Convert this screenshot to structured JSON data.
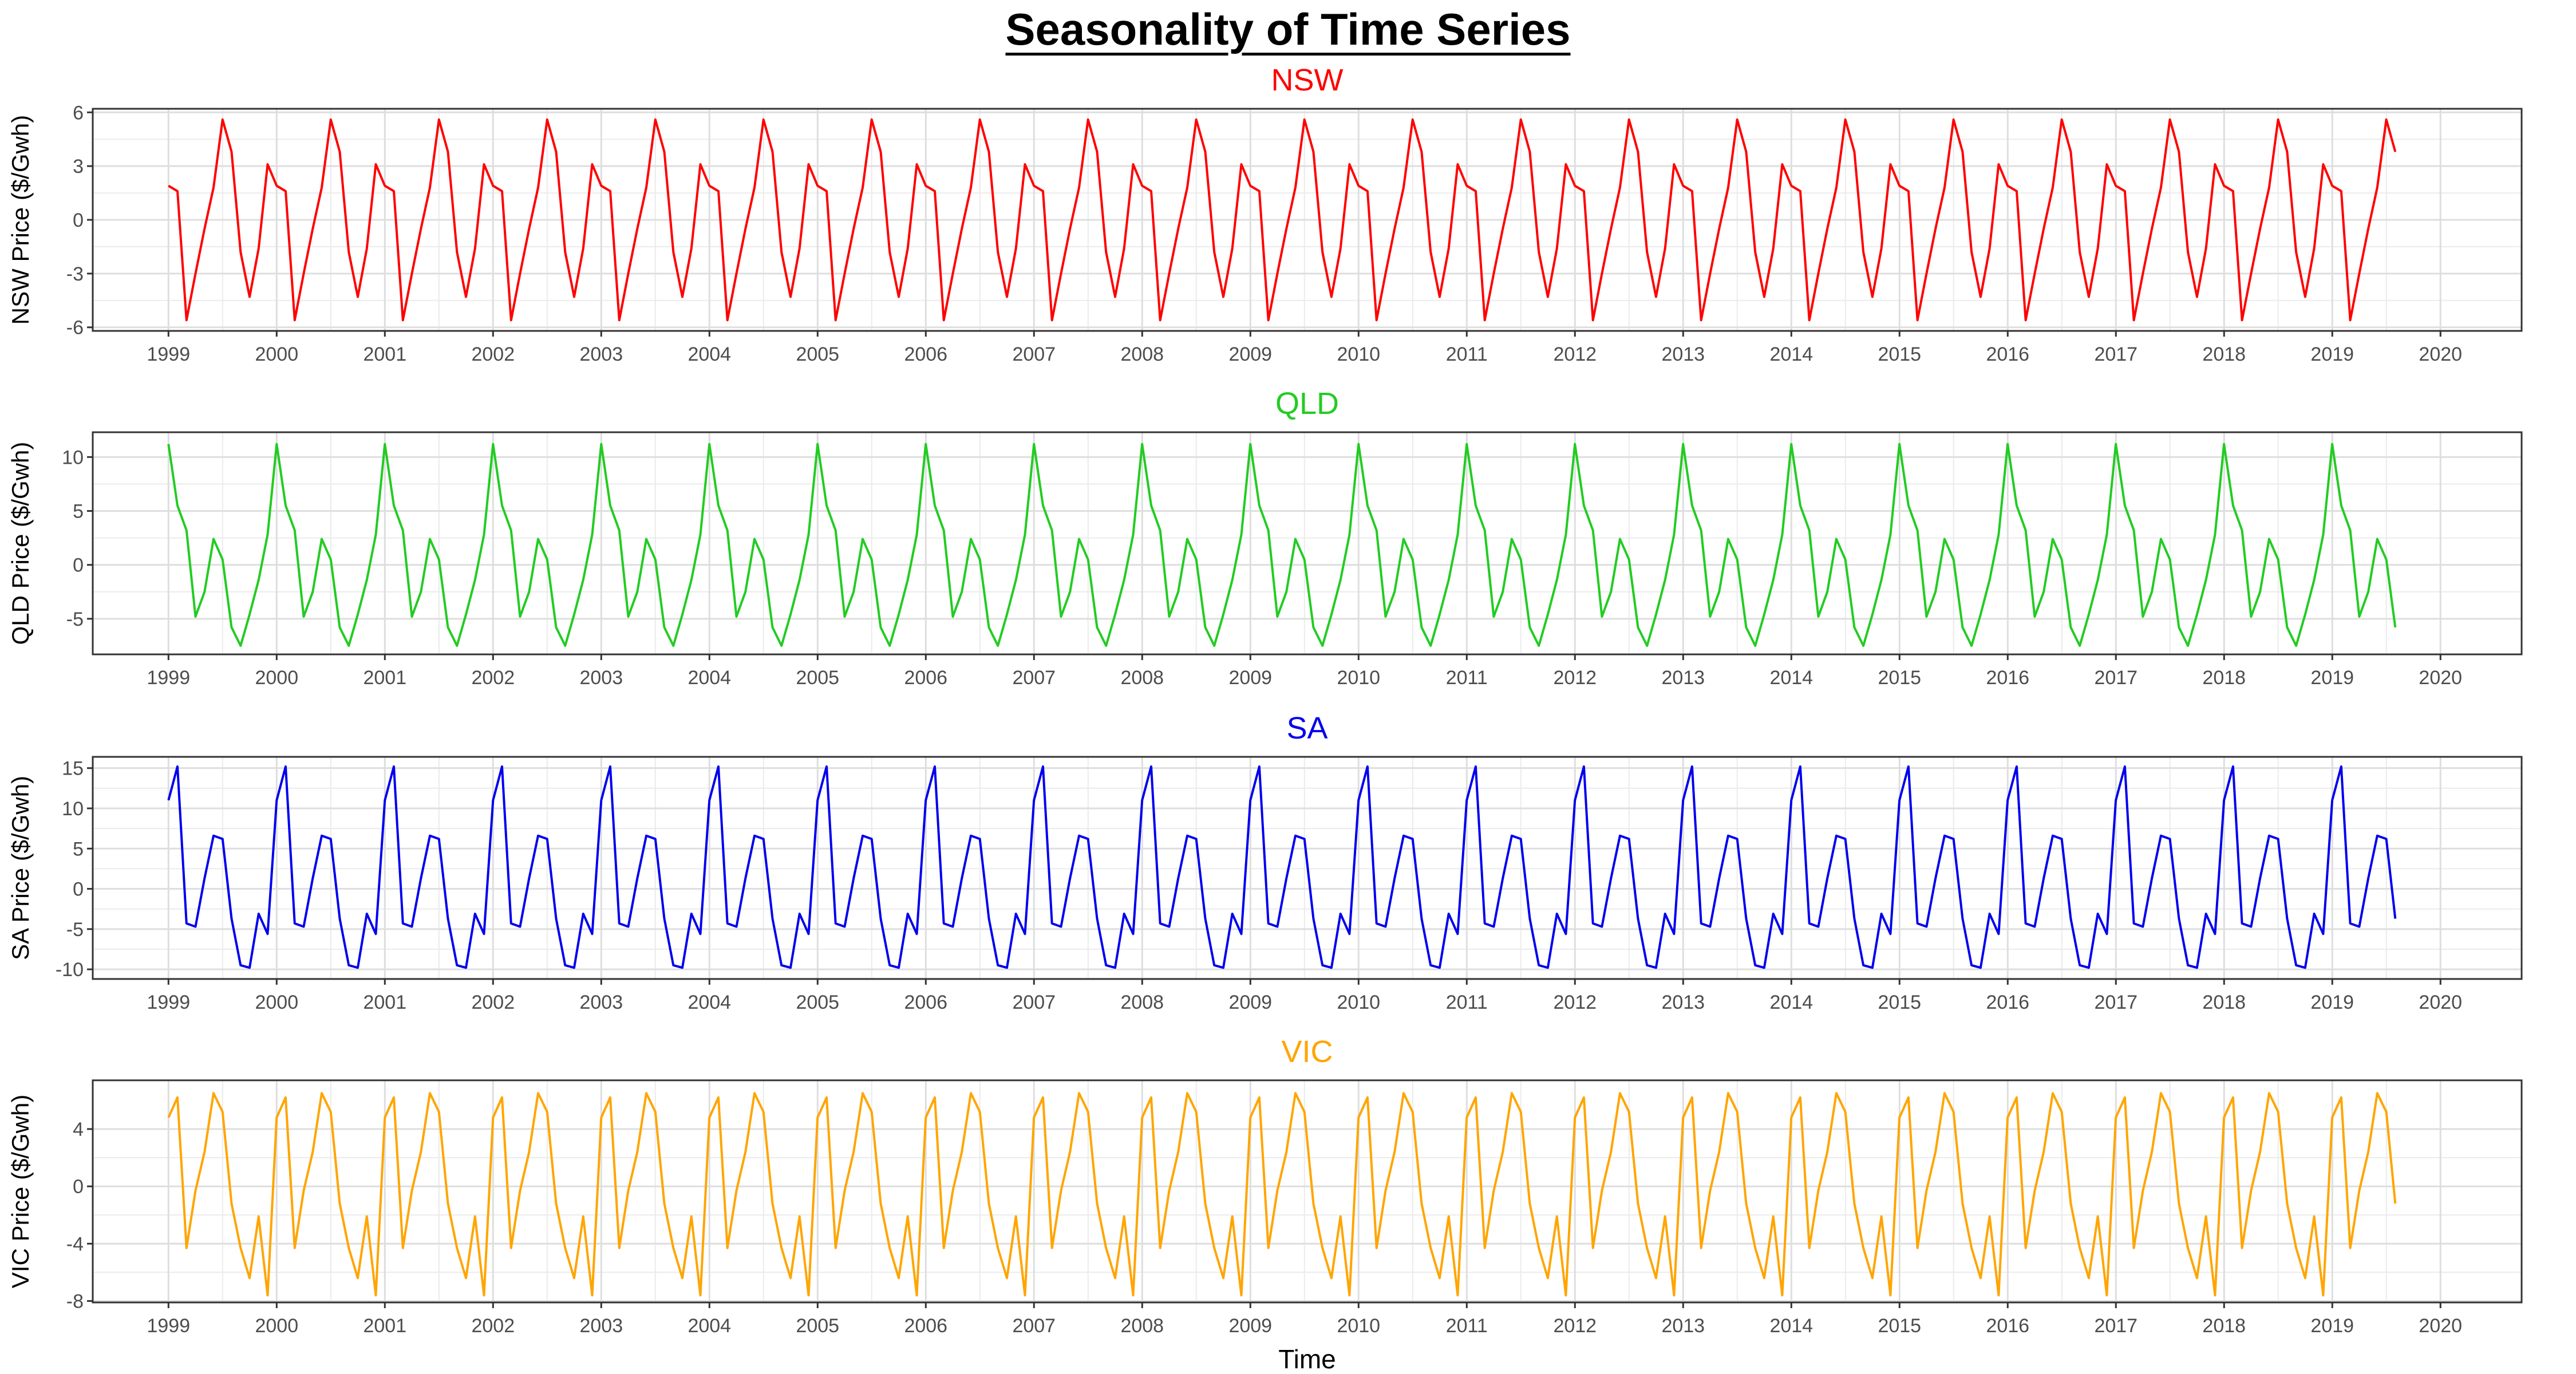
{
  "title": "Seasonality of Time Series",
  "xlabel": "Time",
  "chart_data": [
    {
      "type": "line",
      "title": "NSW",
      "color": "#FF0000",
      "ylabel": "NSW Price ($/Gwh)",
      "yticks": [
        -6,
        -3,
        0,
        3,
        6
      ],
      "ylim": [
        -6.2,
        6.2
      ],
      "xlim": [
        1998.3,
        2020.75
      ],
      "xticks": [
        1999,
        2000,
        2001,
        2002,
        2003,
        2004,
        2005,
        2006,
        2007,
        2008,
        2009,
        2010,
        2011,
        2012,
        2013,
        2014,
        2015,
        2016,
        2017,
        2018,
        2019,
        2020
      ],
      "x_start": 1999.0,
      "x_step": 0.08333,
      "n_points": 32,
      "pattern": [
        1.9,
        1.6,
        -5.6,
        -3.0,
        -0.5,
        1.8,
        5.6,
        3.8,
        -1.8,
        -4.3,
        -1.6,
        3.1,
        -0.5,
        1.9,
        1.6
      ]
    },
    {
      "type": "line",
      "title": "QLD",
      "color": "#22CC22",
      "ylabel": "QLD Price ($/Gwh)",
      "yticks": [
        -5,
        0,
        5,
        10
      ],
      "ylim": [
        -8.3,
        12.3
      ],
      "xlim": [
        1998.3,
        2020.75
      ],
      "xticks": [
        1999,
        2000,
        2001,
        2002,
        2003,
        2004,
        2005,
        2006,
        2007,
        2008,
        2009,
        2010,
        2011,
        2012,
        2013,
        2014,
        2015,
        2016,
        2017,
        2018,
        2019,
        2020
      ],
      "x_start": 1999.0,
      "x_step": 0.08333,
      "n_points": 32,
      "pattern": [
        11.2,
        5.5,
        3.2,
        -4.8,
        -2.5,
        2.4,
        0.5,
        -5.8,
        -7.5,
        -4.6,
        -1.4,
        2.8
      ]
    },
    {
      "type": "line",
      "title": "SA",
      "color": "#0000EE",
      "ylabel": "SA Price ($/Gwh)",
      "yticks": [
        -10,
        -5,
        0,
        5,
        10,
        15
      ],
      "ylim": [
        -11.2,
        16.4
      ],
      "xlim": [
        1998.3,
        2020.75
      ],
      "xticks": [
        1999,
        2000,
        2001,
        2002,
        2003,
        2004,
        2005,
        2006,
        2007,
        2008,
        2009,
        2010,
        2011,
        2012,
        2013,
        2014,
        2015,
        2016,
        2017,
        2018,
        2019,
        2020
      ],
      "x_start": 1999.0,
      "x_step": 0.08333,
      "n_points": 32,
      "pattern": [
        11.0,
        15.2,
        -4.3,
        -4.7,
        1.3,
        6.6,
        6.2,
        -3.7,
        -9.5,
        -9.8,
        -3.1,
        -5.6
      ]
    },
    {
      "type": "line",
      "title": "VIC",
      "color": "#FFA500",
      "ylabel": "VIC Price ($/Gwh)",
      "yticks": [
        -8,
        -4,
        0,
        4
      ],
      "ylim": [
        -8.1,
        7.4
      ],
      "xlim": [
        1998.3,
        2020.75
      ],
      "xticks": [
        1999,
        2000,
        2001,
        2002,
        2003,
        2004,
        2005,
        2006,
        2007,
        2008,
        2009,
        2010,
        2011,
        2012,
        2013,
        2014,
        2015,
        2016,
        2017,
        2018,
        2019,
        2020
      ],
      "x_start": 1999.0,
      "x_step": 0.08333,
      "n_points": 32,
      "pattern": [
        4.8,
        6.2,
        -4.3,
        -0.3,
        2.4,
        6.5,
        5.2,
        -1.2,
        -4.3,
        -6.4,
        -2.1,
        -7.6,
        5.0,
        6.2,
        1.5
      ]
    }
  ]
}
